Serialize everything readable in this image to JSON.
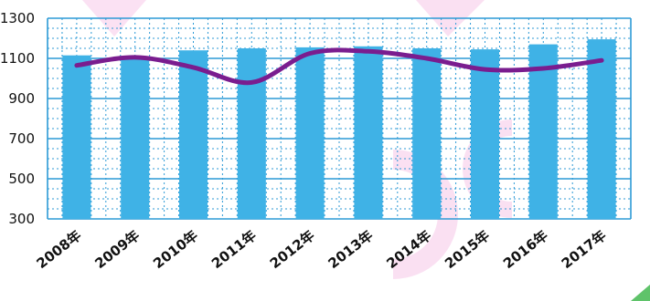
{
  "chart_data": {
    "type": "bar",
    "categories": [
      "2008年",
      "2009年",
      "2010年",
      "2011年",
      "2012年",
      "2013年",
      "2014年",
      "2015年",
      "2016年",
      "2017年"
    ],
    "y_ticks": [
      300,
      500,
      700,
      900,
      1100,
      1300
    ],
    "ylim": [
      300,
      1300
    ],
    "grid": true,
    "series": [
      {
        "type": "bar",
        "values": [
          1115,
          1105,
          1140,
          1150,
          1155,
          1160,
          1150,
          1145,
          1170,
          1195
        ]
      },
      {
        "type": "line",
        "values": [
          1065,
          1105,
          1055,
          980,
          1125,
          1135,
          1100,
          1045,
          1050,
          1090
        ]
      }
    ],
    "colors": {
      "bar": "#3fb2e6",
      "line": "#7a1d8f",
      "grid": "#2c9ad6",
      "watermark": "#f3a8dc"
    }
  }
}
